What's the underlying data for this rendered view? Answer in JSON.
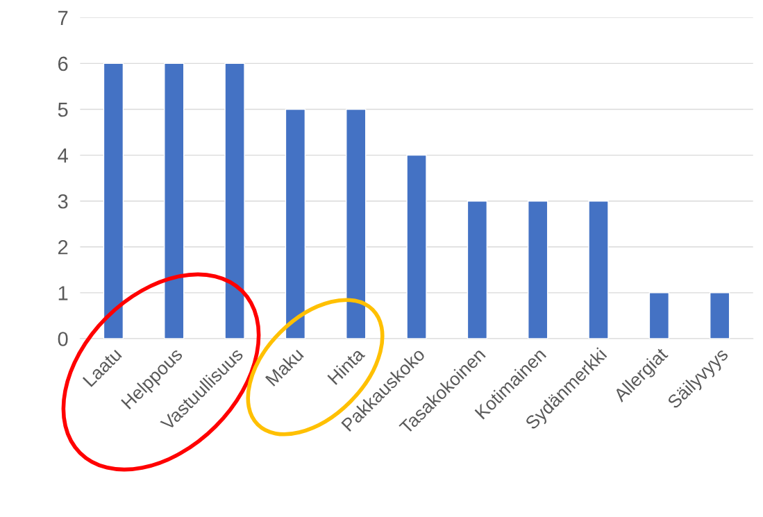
{
  "chart_data": {
    "type": "bar",
    "categories": [
      "Laatu",
      "Helppous",
      "Vastuullisuus",
      "Maku",
      "Hinta",
      "Pakkauskoko",
      "Tasakokoinen",
      "Kotimainen",
      "Sydänmerkki",
      "Allergiat",
      "Säilyvyys"
    ],
    "values": [
      6,
      6,
      6,
      5,
      5,
      4,
      3,
      3,
      3,
      1,
      1
    ],
    "color": "#4472c4",
    "ylim": [
      0,
      7
    ],
    "yticks": [
      0,
      1,
      2,
      3,
      4,
      5,
      6,
      7
    ],
    "grid": "y",
    "legend": false
  }
}
